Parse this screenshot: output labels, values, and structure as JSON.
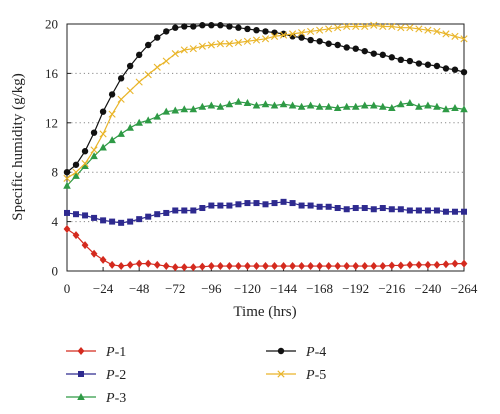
{
  "chart_data": {
    "type": "line",
    "xlabel": "Time (hrs)",
    "ylabel": "Specific humidity (g/kg)",
    "xlim": [
      0,
      -264
    ],
    "ylim": [
      0,
      20
    ],
    "x_ticks": [
      "0",
      "−24",
      "−48",
      "−72",
      "−96",
      "−120",
      "−144",
      "−168",
      "−192",
      "−216",
      "−240",
      "−264"
    ],
    "y_ticks": [
      "0",
      "4",
      "8",
      "12",
      "16",
      "20"
    ],
    "grid": "horizontal-dotted",
    "legend_position": "bottom",
    "x": [
      0,
      -6,
      -12,
      -18,
      -24,
      -30,
      -36,
      -42,
      -48,
      -54,
      -60,
      -66,
      -72,
      -78,
      -84,
      -90,
      -96,
      -102,
      -108,
      -114,
      -120,
      -126,
      -132,
      -138,
      -144,
      -150,
      -156,
      -162,
      -168,
      -174,
      -180,
      -186,
      -192,
      -198,
      -204,
      -210,
      -216,
      -222,
      -228,
      -234,
      -240,
      -246,
      -252,
      -258,
      -264
    ],
    "series": [
      {
        "name_prefix": "P",
        "name_suffix": "-1",
        "color": "#d42a1e",
        "marker": "diamond",
        "values": [
          3.4,
          2.9,
          2.1,
          1.4,
          0.9,
          0.5,
          0.4,
          0.5,
          0.6,
          0.6,
          0.5,
          0.4,
          0.3,
          0.3,
          0.3,
          0.35,
          0.4,
          0.4,
          0.4,
          0.4,
          0.4,
          0.4,
          0.4,
          0.4,
          0.4,
          0.4,
          0.4,
          0.4,
          0.4,
          0.4,
          0.4,
          0.4,
          0.4,
          0.4,
          0.4,
          0.4,
          0.45,
          0.45,
          0.5,
          0.5,
          0.5,
          0.5,
          0.55,
          0.6,
          0.6
        ]
      },
      {
        "name_prefix": "P",
        "name_suffix": "-2",
        "color": "#2e2a8f",
        "marker": "square",
        "values": [
          4.7,
          4.6,
          4.5,
          4.3,
          4.1,
          4.0,
          3.9,
          4.0,
          4.2,
          4.4,
          4.6,
          4.7,
          4.9,
          4.9,
          4.9,
          5.1,
          5.3,
          5.3,
          5.3,
          5.4,
          5.5,
          5.5,
          5.4,
          5.5,
          5.6,
          5.5,
          5.3,
          5.3,
          5.2,
          5.2,
          5.1,
          5.0,
          5.1,
          5.1,
          5.0,
          5.1,
          5.0,
          5.0,
          4.9,
          4.9,
          4.9,
          4.9,
          4.8,
          4.8,
          4.8
        ]
      },
      {
        "name_prefix": "P",
        "name_suffix": "-3",
        "color": "#2e9a45",
        "marker": "triangle",
        "values": [
          6.9,
          7.7,
          8.5,
          9.3,
          10.0,
          10.6,
          11.1,
          11.6,
          12.0,
          12.2,
          12.5,
          12.9,
          13.0,
          13.1,
          13.1,
          13.3,
          13.4,
          13.3,
          13.5,
          13.7,
          13.6,
          13.4,
          13.5,
          13.4,
          13.5,
          13.4,
          13.3,
          13.4,
          13.3,
          13.3,
          13.2,
          13.3,
          13.3,
          13.4,
          13.4,
          13.3,
          13.2,
          13.5,
          13.6,
          13.3,
          13.4,
          13.3,
          13.1,
          13.2,
          13.1
        ]
      },
      {
        "name_prefix": "P",
        "name_suffix": "-4",
        "color": "#111111",
        "marker": "circle",
        "values": [
          8.0,
          8.6,
          9.7,
          11.2,
          12.9,
          14.3,
          15.6,
          16.6,
          17.5,
          18.3,
          18.9,
          19.4,
          19.7,
          19.8,
          19.8,
          19.9,
          19.9,
          19.9,
          19.8,
          19.7,
          19.6,
          19.5,
          19.4,
          19.3,
          19.2,
          19.0,
          18.9,
          18.7,
          18.6,
          18.4,
          18.3,
          18.1,
          18.0,
          17.8,
          17.6,
          17.5,
          17.3,
          17.1,
          17.0,
          16.8,
          16.7,
          16.6,
          16.4,
          16.3,
          16.1
        ]
      },
      {
        "name_prefix": "P",
        "name_suffix": "-5",
        "color": "#e9b52a",
        "marker": "x",
        "values": [
          7.5,
          8.0,
          8.7,
          9.8,
          11.1,
          12.7,
          13.9,
          14.6,
          15.3,
          15.9,
          16.5,
          17.0,
          17.6,
          17.9,
          18.0,
          18.2,
          18.3,
          18.4,
          18.4,
          18.5,
          18.6,
          18.7,
          18.8,
          19.0,
          19.1,
          19.2,
          19.3,
          19.4,
          19.5,
          19.6,
          19.7,
          19.8,
          19.8,
          19.8,
          19.9,
          19.8,
          19.8,
          19.7,
          19.7,
          19.6,
          19.5,
          19.4,
          19.2,
          19.0,
          18.8
        ]
      }
    ]
  }
}
